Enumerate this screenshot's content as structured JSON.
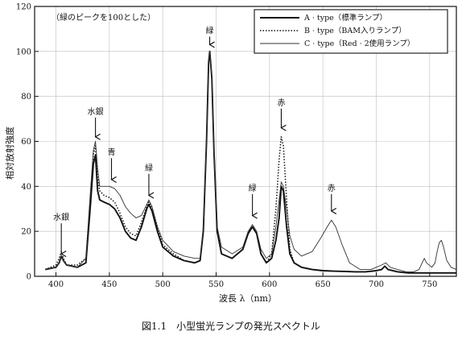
{
  "chart_data": {
    "type": "line",
    "note": "（緑のピークを100とした）",
    "xlabel": "波長 λ（nm）",
    "ylabel": "相対放射強度",
    "caption": "図1.1　小型蛍光ランプの発光スペクトル",
    "xlim": [
      380,
      775
    ],
    "ylim": [
      0,
      120
    ],
    "xticks": [
      400,
      450,
      500,
      550,
      600,
      650,
      700,
      750
    ],
    "yticks": [
      0,
      20,
      40,
      60,
      80,
      100,
      120
    ],
    "legend_position": "top-right",
    "series": [
      {
        "name": "A · type（標準ランプ）",
        "style": "thick-solid",
        "points": [
          [
            390,
            3
          ],
          [
            400,
            4
          ],
          [
            403,
            6
          ],
          [
            405,
            9
          ],
          [
            407,
            7
          ],
          [
            410,
            5
          ],
          [
            420,
            4
          ],
          [
            428,
            6
          ],
          [
            432,
            30
          ],
          [
            435,
            50
          ],
          [
            437,
            54
          ],
          [
            439,
            38
          ],
          [
            441,
            34
          ],
          [
            445,
            33
          ],
          [
            450,
            32
          ],
          [
            455,
            30
          ],
          [
            460,
            26
          ],
          [
            465,
            20
          ],
          [
            470,
            17
          ],
          [
            475,
            16
          ],
          [
            480,
            22
          ],
          [
            485,
            30
          ],
          [
            487,
            32
          ],
          [
            490,
            29
          ],
          [
            495,
            20
          ],
          [
            500,
            13
          ],
          [
            510,
            9
          ],
          [
            520,
            7
          ],
          [
            530,
            6
          ],
          [
            535,
            7
          ],
          [
            538,
            20
          ],
          [
            541,
            60
          ],
          [
            543,
            95
          ],
          [
            544,
            100
          ],
          [
            546,
            88
          ],
          [
            548,
            55
          ],
          [
            551,
            20
          ],
          [
            555,
            10
          ],
          [
            565,
            8
          ],
          [
            575,
            12
          ],
          [
            580,
            19
          ],
          [
            584,
            22
          ],
          [
            588,
            19
          ],
          [
            592,
            10
          ],
          [
            597,
            6
          ],
          [
            602,
            8
          ],
          [
            606,
            16
          ],
          [
            609,
            26
          ],
          [
            611,
            40
          ],
          [
            613,
            38
          ],
          [
            616,
            22
          ],
          [
            619,
            10
          ],
          [
            623,
            6
          ],
          [
            630,
            4
          ],
          [
            640,
            3
          ],
          [
            650,
            2.5
          ],
          [
            660,
            2.3
          ],
          [
            670,
            2.2
          ],
          [
            680,
            2
          ],
          [
            690,
            2
          ],
          [
            700,
            2.5
          ],
          [
            705,
            3
          ],
          [
            708,
            4.5
          ],
          [
            711,
            3
          ],
          [
            720,
            2
          ],
          [
            730,
            1.5
          ],
          [
            740,
            1.5
          ],
          [
            750,
            1.5
          ],
          [
            765,
            1.5
          ],
          [
            775,
            1.5
          ]
        ]
      },
      {
        "name": "B · type（BAM入りランプ）",
        "style": "dotted",
        "points": [
          [
            390,
            3
          ],
          [
            400,
            5
          ],
          [
            403,
            8
          ],
          [
            405,
            11
          ],
          [
            407,
            8
          ],
          [
            410,
            5
          ],
          [
            420,
            5
          ],
          [
            428,
            8
          ],
          [
            432,
            33
          ],
          [
            435,
            54
          ],
          [
            437,
            58
          ],
          [
            439,
            44
          ],
          [
            441,
            38
          ],
          [
            445,
            36
          ],
          [
            450,
            35
          ],
          [
            455,
            33
          ],
          [
            460,
            28
          ],
          [
            465,
            22
          ],
          [
            470,
            19
          ],
          [
            475,
            18
          ],
          [
            480,
            24
          ],
          [
            485,
            31
          ],
          [
            487,
            33
          ],
          [
            490,
            30
          ],
          [
            495,
            22
          ],
          [
            500,
            14
          ],
          [
            510,
            10
          ],
          [
            520,
            7
          ],
          [
            530,
            6
          ],
          [
            535,
            7
          ],
          [
            538,
            20
          ],
          [
            541,
            60
          ],
          [
            543,
            95
          ],
          [
            544,
            100
          ],
          [
            546,
            88
          ],
          [
            548,
            55
          ],
          [
            551,
            20
          ],
          [
            555,
            10
          ],
          [
            565,
            8
          ],
          [
            575,
            12
          ],
          [
            580,
            19
          ],
          [
            584,
            22
          ],
          [
            588,
            19
          ],
          [
            592,
            10
          ],
          [
            597,
            6
          ],
          [
            602,
            10
          ],
          [
            606,
            30
          ],
          [
            609,
            52
          ],
          [
            611,
            62
          ],
          [
            613,
            58
          ],
          [
            616,
            34
          ],
          [
            619,
            12
          ],
          [
            623,
            6
          ],
          [
            630,
            4
          ],
          [
            640,
            3
          ],
          [
            650,
            2.5
          ],
          [
            660,
            2.3
          ],
          [
            670,
            2.2
          ],
          [
            680,
            2
          ],
          [
            690,
            2
          ],
          [
            700,
            2.5
          ],
          [
            705,
            3
          ],
          [
            708,
            4.5
          ],
          [
            711,
            3
          ],
          [
            720,
            2
          ],
          [
            730,
            1.5
          ],
          [
            740,
            1.5
          ],
          [
            750,
            1.5
          ],
          [
            765,
            1.5
          ],
          [
            775,
            1.5
          ]
        ]
      },
      {
        "name": "C · type（Red · 2使用ランプ）",
        "style": "thin-solid",
        "points": [
          [
            390,
            3
          ],
          [
            400,
            4
          ],
          [
            403,
            6
          ],
          [
            405,
            9
          ],
          [
            407,
            7
          ],
          [
            410,
            5
          ],
          [
            420,
            4
          ],
          [
            428,
            8
          ],
          [
            432,
            36
          ],
          [
            435,
            56
          ],
          [
            437,
            60
          ],
          [
            439,
            48
          ],
          [
            441,
            40
          ],
          [
            445,
            40
          ],
          [
            450,
            40
          ],
          [
            455,
            39
          ],
          [
            460,
            36
          ],
          [
            465,
            31
          ],
          [
            470,
            28
          ],
          [
            475,
            26
          ],
          [
            480,
            27
          ],
          [
            485,
            32
          ],
          [
            487,
            34
          ],
          [
            490,
            31
          ],
          [
            495,
            22
          ],
          [
            500,
            16
          ],
          [
            510,
            11
          ],
          [
            520,
            9
          ],
          [
            530,
            8
          ],
          [
            535,
            8
          ],
          [
            538,
            22
          ],
          [
            541,
            60
          ],
          [
            543,
            95
          ],
          [
            544,
            100
          ],
          [
            546,
            88
          ],
          [
            548,
            55
          ],
          [
            551,
            22
          ],
          [
            555,
            13
          ],
          [
            565,
            10
          ],
          [
            575,
            13
          ],
          [
            580,
            20
          ],
          [
            584,
            23
          ],
          [
            588,
            20
          ],
          [
            592,
            12
          ],
          [
            597,
            8
          ],
          [
            602,
            10
          ],
          [
            606,
            22
          ],
          [
            609,
            34
          ],
          [
            611,
            42
          ],
          [
            613,
            40
          ],
          [
            616,
            30
          ],
          [
            619,
            18
          ],
          [
            623,
            12
          ],
          [
            630,
            9
          ],
          [
            640,
            11
          ],
          [
            648,
            17
          ],
          [
            654,
            22
          ],
          [
            658,
            25
          ],
          [
            662,
            22
          ],
          [
            668,
            14
          ],
          [
            675,
            6
          ],
          [
            685,
            3
          ],
          [
            695,
            3
          ],
          [
            700,
            4
          ],
          [
            705,
            5
          ],
          [
            709,
            6
          ],
          [
            713,
            4
          ],
          [
            720,
            3
          ],
          [
            728,
            2
          ],
          [
            735,
            2
          ],
          [
            740,
            3
          ],
          [
            743,
            6
          ],
          [
            745,
            8
          ],
          [
            747,
            6
          ],
          [
            752,
            4
          ],
          [
            755,
            6
          ],
          [
            757,
            11
          ],
          [
            759,
            15
          ],
          [
            761,
            16
          ],
          [
            763,
            13
          ],
          [
            766,
            7
          ],
          [
            770,
            4
          ],
          [
            775,
            3
          ]
        ]
      }
    ],
    "annotations": [
      {
        "text": "水銀",
        "x": 405,
        "y": 10,
        "label_y": 25
      },
      {
        "text": "水銀",
        "x": 437,
        "y": 62,
        "label_y": 72
      },
      {
        "text": "青",
        "x": 452,
        "y": 43,
        "label_y": 54
      },
      {
        "text": "緑",
        "x": 487,
        "y": 36,
        "label_y": 47
      },
      {
        "text": "緑",
        "x": 544,
        "y": 103,
        "label_y": 108
      },
      {
        "text": "緑",
        "x": 584,
        "y": 27,
        "label_y": 38
      },
      {
        "text": "赤",
        "x": 611,
        "y": 66,
        "label_y": 76
      },
      {
        "text": "赤",
        "x": 658,
        "y": 29,
        "label_y": 38
      }
    ]
  }
}
